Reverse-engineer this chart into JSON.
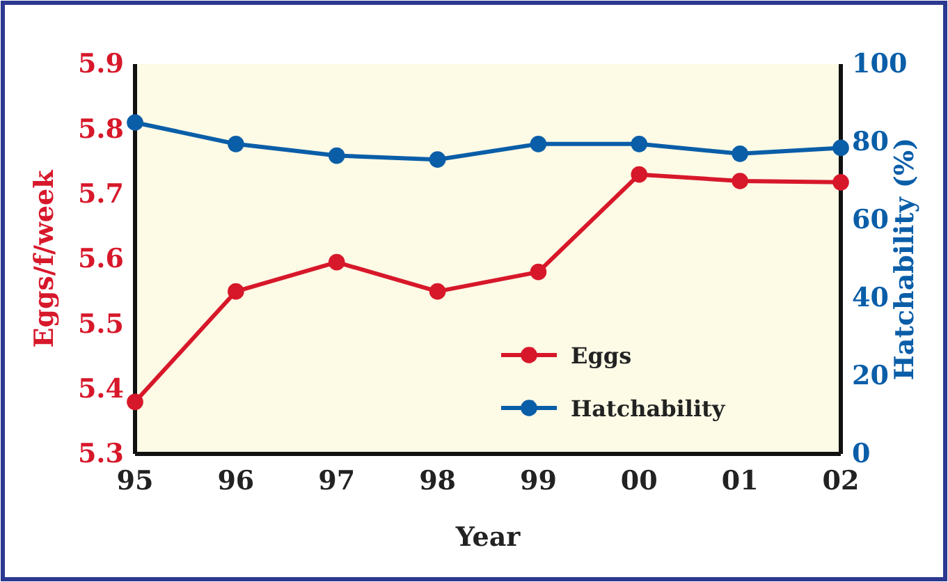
{
  "chart_data": {
    "type": "line",
    "xlabel": "Year",
    "ylabel": "Eggs/f/week",
    "y2label": "Hatchability (%)",
    "categories": [
      "95",
      "96",
      "97",
      "98",
      "99",
      "00",
      "01",
      "02"
    ],
    "series": [
      {
        "name": "Eggs",
        "color": "#d7182a",
        "values": [
          5.38,
          5.55,
          5.595,
          5.55,
          5.58,
          5.73,
          5.72,
          5.718
        ]
      },
      {
        "name": "Hatchability",
        "color": "#0a5ea8",
        "axis": "y2",
        "values": [
          85,
          79.5,
          76.5,
          75.5,
          79.5,
          79.5,
          77,
          78.5
        ]
      }
    ],
    "ylim": [
      5.3,
      5.9
    ],
    "yticks": [
      {
        "value": 5.3,
        "label": "5.3"
      },
      {
        "value": 5.4,
        "label": "5.4"
      },
      {
        "value": 5.5,
        "label": "5.5"
      },
      {
        "value": 5.6,
        "label": "5.6"
      },
      {
        "value": 5.7,
        "label": "5.7"
      },
      {
        "value": 5.8,
        "label": "5.8"
      },
      {
        "value": 5.9,
        "label": "5.9"
      }
    ],
    "y2lim": [
      0,
      100
    ],
    "y2ticks": [
      0,
      20,
      40,
      60,
      80,
      100
    ],
    "marker": "circle",
    "legend": "bottom right",
    "grid": false
  }
}
